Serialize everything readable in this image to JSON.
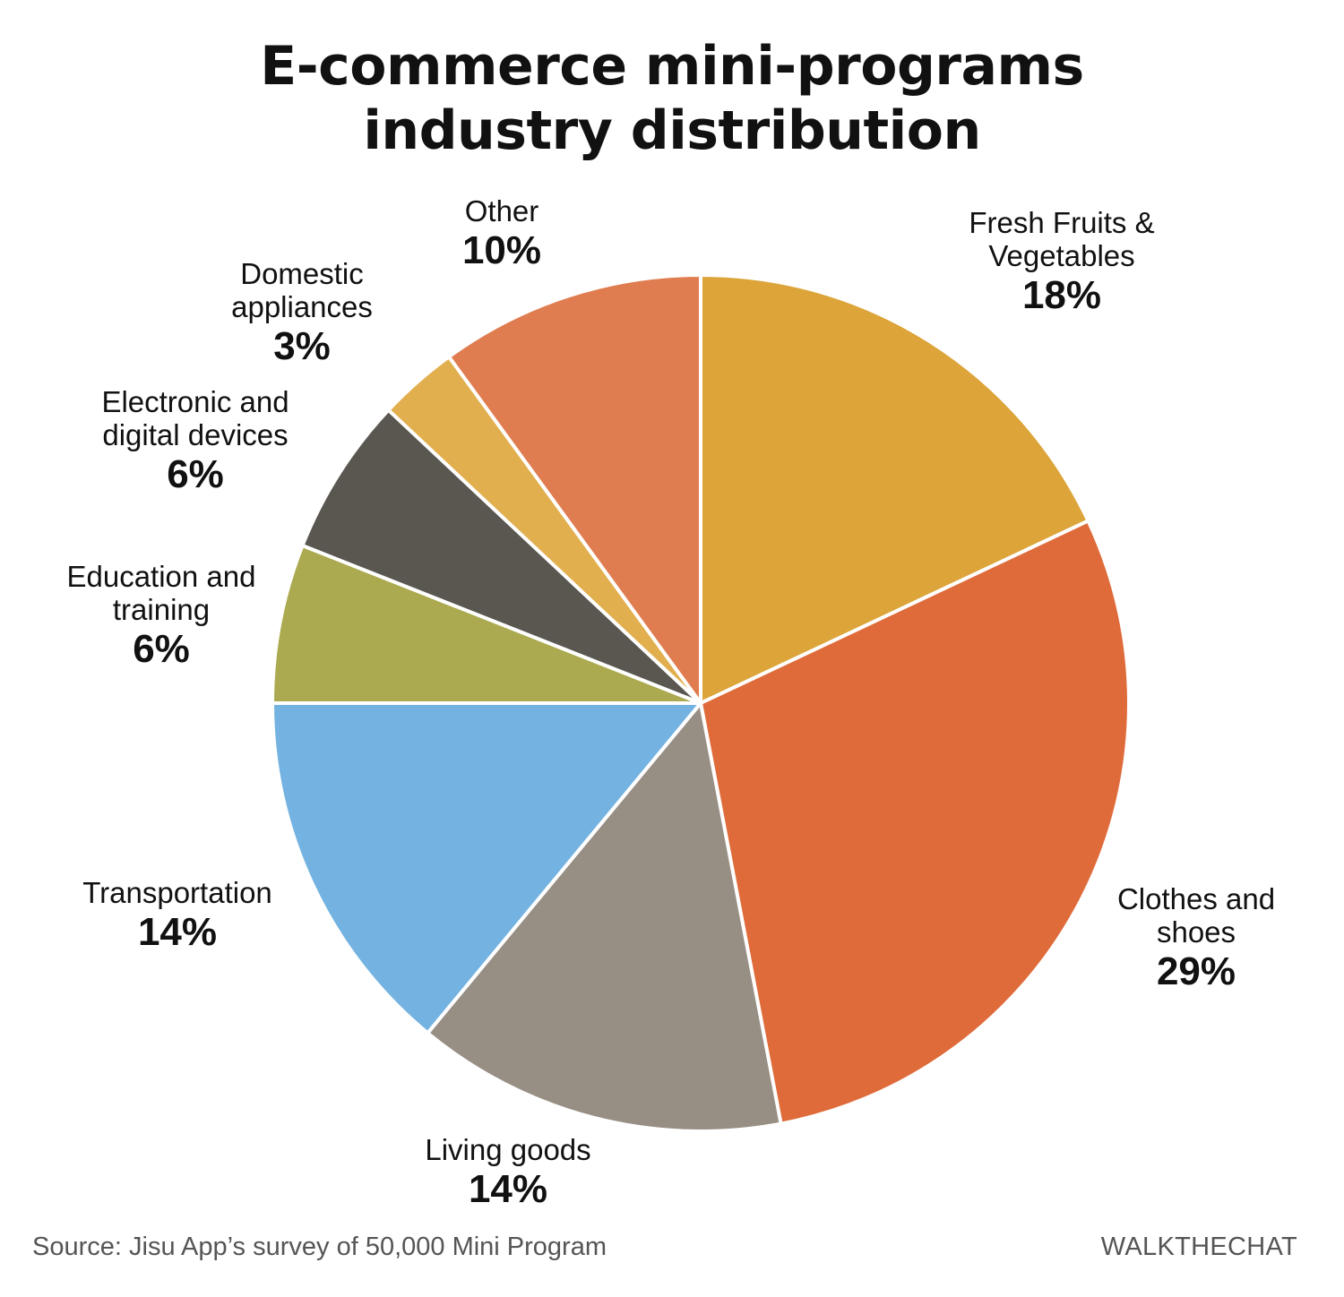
{
  "chart_data": {
    "type": "pie",
    "title_lines": [
      "E-commerce mini-programs",
      "industry distribution"
    ],
    "slices": [
      {
        "label_lines": [
          "Fresh Fruits &",
          "Vegetables"
        ],
        "value": 18,
        "value_label": "18%",
        "color": "#DCA439"
      },
      {
        "label_lines": [
          "Clothes and",
          "shoes"
        ],
        "value": 29,
        "value_label": "29%",
        "color": "#DF6B3A"
      },
      {
        "label_lines": [
          "Living goods"
        ],
        "value": 14,
        "value_label": "14%",
        "color": "#978E84"
      },
      {
        "label_lines": [
          "Transportation"
        ],
        "value": 14,
        "value_label": "14%",
        "color": "#74B3E1"
      },
      {
        "label_lines": [
          "Education and",
          "training"
        ],
        "value": 6,
        "value_label": "6%",
        "color": "#ABAA50"
      },
      {
        "label_lines": [
          "Electronic and",
          "digital devices"
        ],
        "value": 6,
        "value_label": "6%",
        "color": "#5A5650"
      },
      {
        "label_lines": [
          "Domestic",
          "appliances"
        ],
        "value": 3,
        "value_label": "3%",
        "color": "#E2AF4F"
      },
      {
        "label_lines": [
          "Other"
        ],
        "value": 10,
        "value_label": "10%",
        "color": "#E07D50"
      }
    ]
  },
  "footer": {
    "source": "Source: Jisu App’s survey of 50,000 Mini Program",
    "brand": "WALKTHECHAT"
  }
}
